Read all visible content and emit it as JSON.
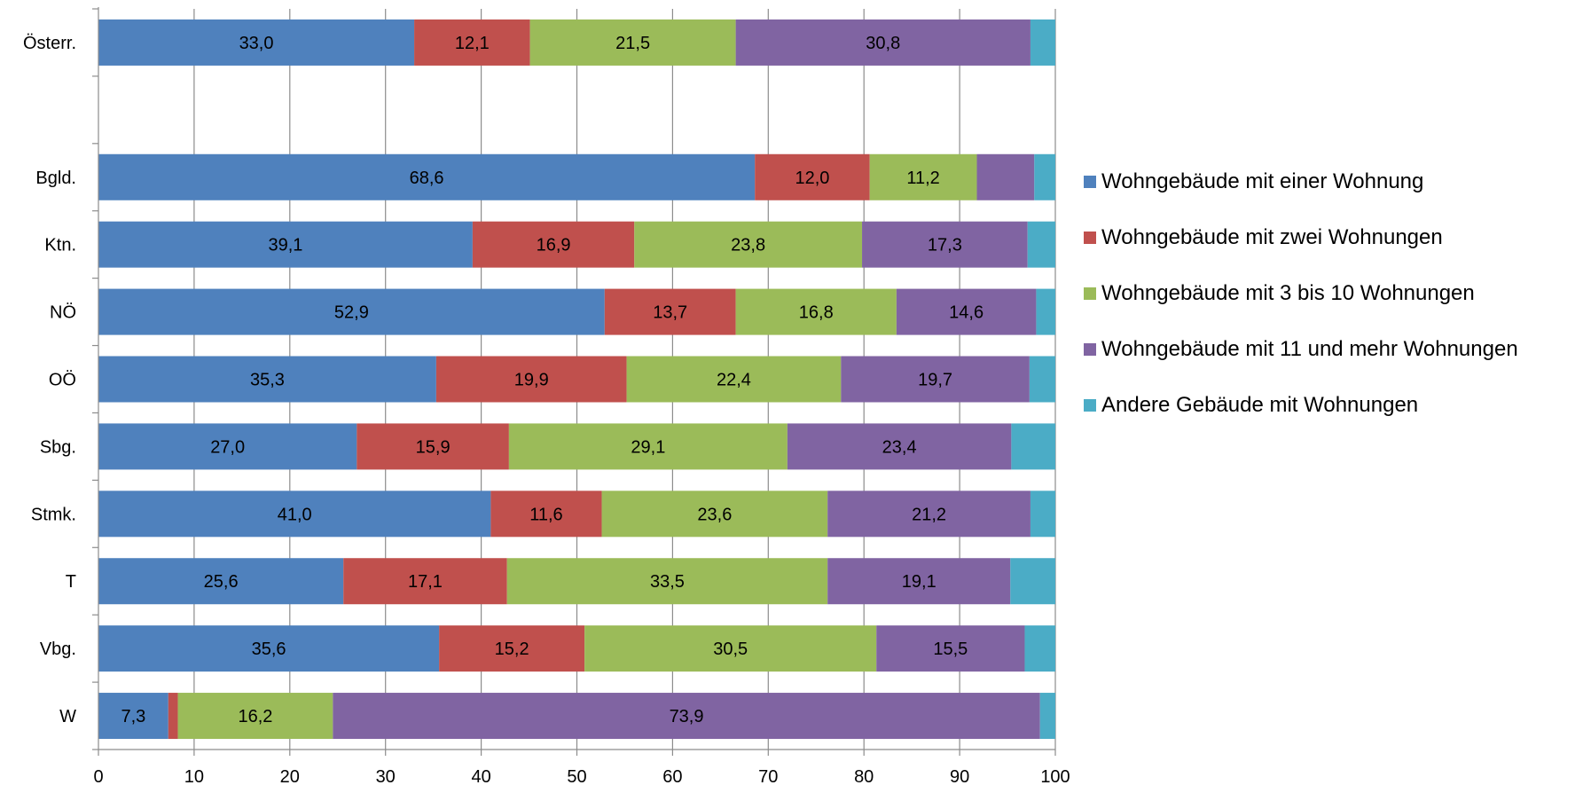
{
  "chart_data": {
    "type": "bar",
    "orientation": "horizontal",
    "stacked": true,
    "categories": [
      "Österr.",
      "",
      "Bgld.",
      "Ktn.",
      "NÖ",
      "OÖ",
      "Sbg.",
      "Stmk.",
      "T",
      "Vbg.",
      "W"
    ],
    "series": [
      {
        "name": "Wohngebäude mit einer Wohnung",
        "color": "#4F81BD",
        "values": [
          33.0,
          null,
          68.6,
          39.1,
          52.9,
          35.3,
          27.0,
          41.0,
          25.6,
          35.6,
          7.3
        ],
        "labels": [
          "33,0",
          "",
          "68,6",
          "39,1",
          "52,9",
          "35,3",
          "27,0",
          "41,0",
          "25,6",
          "35,6",
          "7,3"
        ]
      },
      {
        "name": "Wohngebäude mit zwei Wohnungen",
        "color": "#C0504D",
        "values": [
          12.1,
          null,
          12.0,
          16.9,
          13.7,
          19.9,
          15.9,
          11.6,
          17.1,
          15.2,
          1.0
        ],
        "labels": [
          "12,1",
          "",
          "12,0",
          "16,9",
          "13,7",
          "19,9",
          "15,9",
          "11,6",
          "17,1",
          "15,2",
          ""
        ]
      },
      {
        "name": "Wohngebäude mit 3 bis 10 Wohnungen",
        "color": "#9BBB59",
        "values": [
          21.5,
          null,
          11.2,
          23.8,
          16.8,
          22.4,
          29.1,
          23.6,
          33.5,
          30.5,
          16.2
        ],
        "labels": [
          "21,5",
          "",
          "11,2",
          "23,8",
          "16,8",
          "22,4",
          "29,1",
          "23,6",
          "33,5",
          "30,5",
          "16,2"
        ]
      },
      {
        "name": "Wohngebäude mit 11 und mehr Wohnungen",
        "color": "#8064A2",
        "values": [
          30.8,
          null,
          6.0,
          17.3,
          14.6,
          19.7,
          23.4,
          21.2,
          19.1,
          15.5,
          73.9
        ],
        "labels": [
          "30,8",
          "",
          "",
          "17,3",
          "14,6",
          "19,7",
          "23,4",
          "21,2",
          "19,1",
          "15,5",
          "73,9"
        ]
      },
      {
        "name": "Andere Gebäude mit Wohnungen",
        "color": "#4BACC6",
        "values": [
          2.6,
          null,
          2.2,
          2.9,
          2.0,
          2.7,
          4.6,
          2.6,
          4.7,
          3.2,
          1.6
        ],
        "labels": [
          "",
          "",
          "",
          "",
          "",
          "",
          "",
          "",
          "",
          "",
          ""
        ]
      }
    ],
    "xlim": [
      0,
      100
    ],
    "xticks": [
      0,
      10,
      20,
      30,
      40,
      50,
      60,
      70,
      80,
      90,
      100
    ],
    "xtick_labels": [
      "0",
      "10",
      "20",
      "30",
      "40",
      "50",
      "60",
      "70",
      "80",
      "90",
      "100"
    ],
    "grid": "vertical",
    "legend_position": "right",
    "title": "",
    "xlabel": "",
    "ylabel": ""
  }
}
